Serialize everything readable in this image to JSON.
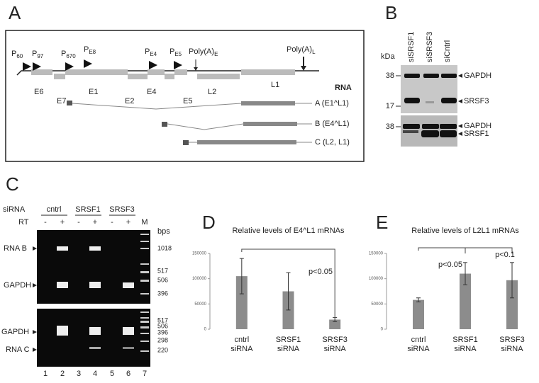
{
  "panel_a": {
    "label": "A",
    "promoters": [
      {
        "main": "P",
        "sub": "60"
      },
      {
        "main": "P",
        "sub": "97"
      },
      {
        "main": "P",
        "sub": "670"
      },
      {
        "main": "P",
        "sub": "E8"
      },
      {
        "main": "P",
        "sub": "E4"
      },
      {
        "main": "P",
        "sub": "E5"
      }
    ],
    "polya": [
      {
        "main": "Poly(A)",
        "sub": "E"
      },
      {
        "main": "Poly(A)",
        "sub": "L"
      }
    ],
    "exons": [
      "E6",
      "E7",
      "E1",
      "E2",
      "E4",
      "E5",
      "L2",
      "L1"
    ],
    "rna_heading": "RNA",
    "rnas": [
      "A (E1^L1)",
      "B (E4^L1)",
      "C (L2, L1)"
    ]
  },
  "panel_b": {
    "label": "B",
    "lanes": [
      "siSRSF1",
      "siSRSF3",
      "siCntrl"
    ],
    "unit": "kDa",
    "markers": [
      "38",
      "17",
      "38"
    ],
    "proteins": [
      "GAPDH",
      "SRSF3",
      "GAPDH",
      "SRSF1"
    ]
  },
  "panel_c": {
    "label": "C",
    "row_labels": [
      "siRNA",
      "RT"
    ],
    "groups": [
      "cntrl",
      "SRSF1",
      "SRSF3"
    ],
    "rt": [
      "-",
      "+",
      "-",
      "+",
      "-",
      "+"
    ],
    "marker_lane": "M",
    "unit": "bps",
    "bands": [
      "RNA B",
      "GAPDH",
      "GAPDH",
      "RNA C"
    ],
    "ladder_top": [
      "1018",
      "517",
      "506",
      "396"
    ],
    "ladder_bottom": [
      "517",
      "506",
      "396",
      "298",
      "220"
    ],
    "lanes": [
      "1",
      "2",
      "3",
      "4",
      "5",
      "6",
      "7"
    ]
  },
  "chart_data": [
    {
      "panel": "D",
      "type": "bar",
      "title": "Relative levels of E4^L1 mRNAs",
      "categories": [
        "cntrl\nsiRNA",
        "SRSF1\nsiRNA",
        "SRSF3\nsiRNA"
      ],
      "values": [
        105000,
        75000,
        19000
      ],
      "errors": [
        35000,
        37000,
        4000
      ],
      "color": "#8c8c8c",
      "ylim": [
        0,
        150000
      ],
      "yticks": [
        0,
        50000,
        100000,
        150000
      ],
      "annotations": [
        "p<0.05"
      ]
    },
    {
      "panel": "E",
      "type": "bar",
      "title": "Relative levels of L2L1 mRNAs",
      "categories": [
        "cntrl\nsiRNA",
        "SRSF1\nsiRNA",
        "SRSF3\nsiRNA"
      ],
      "values": [
        58000,
        110000,
        97000
      ],
      "errors": [
        4000,
        22000,
        35000
      ],
      "color": "#8c8c8c",
      "ylim": [
        0,
        150000
      ],
      "yticks": [
        0,
        50000,
        100000,
        150000
      ],
      "annotations": [
        "p<0.05",
        "p<0.1"
      ]
    }
  ]
}
